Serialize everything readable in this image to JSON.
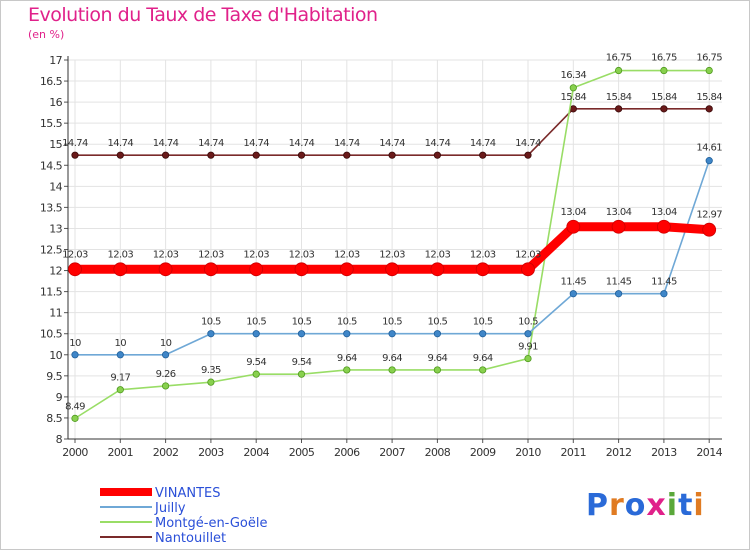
{
  "title": "Evolution du Taux de Taxe d'Habitation",
  "subtitle": "(en %)",
  "logo_text": "Proxiti",
  "chart_data": {
    "type": "line",
    "title": "Evolution du Taux de Taxe d'Habitation",
    "ylabel": "(en %)",
    "xlabel": "",
    "ylim": [
      8,
      17
    ],
    "yticks": [
      "8",
      "8.5",
      "9",
      "9.5",
      "10",
      "10.5",
      "11",
      "11.5",
      "12",
      "12.5",
      "13",
      "13.5",
      "14",
      "14.5",
      "15",
      "15.5",
      "16",
      "16.5",
      "17"
    ],
    "x": [
      "2000",
      "2001",
      "2002",
      "2003",
      "2004",
      "2005",
      "2006",
      "2007",
      "2008",
      "2009",
      "2010",
      "2011",
      "2012",
      "2013",
      "2014"
    ],
    "grid": true,
    "legend_position": "bottom-left",
    "series": [
      {
        "name": "VINANTES",
        "color": "#ff0000",
        "values": [
          12.03,
          12.03,
          12.03,
          12.03,
          12.03,
          12.03,
          12.03,
          12.03,
          12.03,
          12.03,
          12.03,
          13.04,
          13.04,
          13.04,
          12.97
        ],
        "labels": [
          "12.03",
          "12.03",
          "12.03",
          "12.03",
          "12.03",
          "12.03",
          "12.03",
          "12.03",
          "12.03",
          "12.03",
          "12.03",
          "13.04",
          "13.04",
          "13.04",
          "12.97"
        ]
      },
      {
        "name": "Juilly",
        "color": "#6fa8d6",
        "values": [
          10,
          10,
          10,
          10.5,
          10.5,
          10.5,
          10.5,
          10.5,
          10.5,
          10.5,
          10.5,
          11.45,
          11.45,
          11.45,
          14.61
        ],
        "labels": [
          "10",
          "10",
          "10",
          "10.5",
          "10.5",
          "10.5",
          "10.5",
          "10.5",
          "10.5",
          "10.5",
          "10.5",
          "11.45",
          "11.45",
          "11.45",
          "14.61"
        ]
      },
      {
        "name": "Montgé-en-Goële",
        "color": "#99dd66",
        "values": [
          8.49,
          9.17,
          9.26,
          9.35,
          9.54,
          9.54,
          9.64,
          9.64,
          9.64,
          9.64,
          9.91,
          16.34,
          16.75,
          16.75,
          16.75
        ],
        "labels": [
          "8.49",
          "9.17",
          "9.26",
          "9.35",
          "9.54",
          "9.54",
          "9.64",
          "9.64",
          "9.64",
          "9.64",
          "9.91",
          "16.34",
          "16.75",
          "16.75",
          "16.75"
        ]
      },
      {
        "name": "Nantouillet",
        "color": "#7a2a2a",
        "values": [
          14.74,
          14.74,
          14.74,
          14.74,
          14.74,
          14.74,
          14.74,
          14.74,
          14.74,
          14.74,
          14.74,
          15.84,
          15.84,
          15.84,
          15.84
        ],
        "labels": [
          "14.74",
          "14.74",
          "14.74",
          "14.74",
          "14.74",
          "14.74",
          "14.74",
          "14.74",
          "14.74",
          "14.74",
          "14.74",
          "15.84",
          "15.84",
          "15.84",
          "15.84"
        ]
      }
    ]
  }
}
